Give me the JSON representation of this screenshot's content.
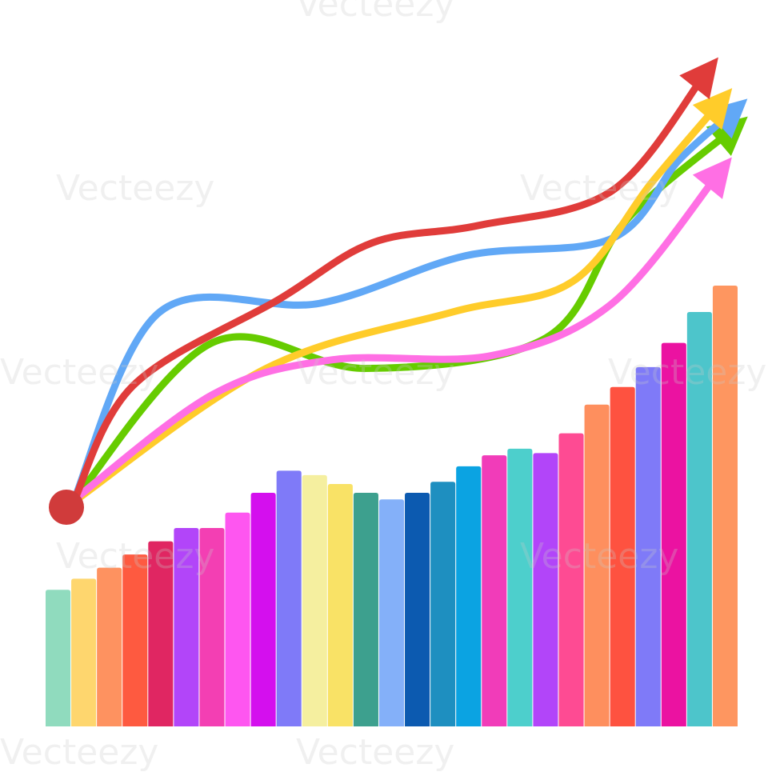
{
  "chart_data": {
    "type": "bar",
    "title": "",
    "xlabel": "",
    "ylabel": "",
    "ylim": [
      0,
      100
    ],
    "grid": false,
    "values": [
      31,
      33.5,
      36,
      39,
      42,
      45,
      45,
      48.5,
      53,
      58,
      57,
      55,
      53,
      51.5,
      53,
      55.5,
      59,
      61.5,
      63,
      62,
      66.5,
      73,
      77,
      81.5,
      87,
      94,
      100
    ],
    "colors": [
      "#90DBBE",
      "#FED66E",
      "#FE9260",
      "#FE5A40",
      "#E02662",
      "#B245F9",
      "#F33FB3",
      "#FE56F0",
      "#D40FEE",
      "#7F7AF8",
      "#F5EF9F",
      "#F9E266",
      "#3DA08E",
      "#84B0F9",
      "#0C5AB0",
      "#1E8FC0",
      "#0BA3E2",
      "#F13CB9",
      "#4DCFCC",
      "#B245F9",
      "#FE4B93",
      "#FE8F5E",
      "#FE5240",
      "#7F7AF8",
      "#EB12A1",
      "#4DC5CB",
      "#FE9660"
    ],
    "trend_arrows": [
      {
        "color": "#E03C3A",
        "points": [
          [
            0,
            20
          ],
          [
            0.1,
            28
          ],
          [
            0.32,
            48
          ],
          [
            0.46,
            61
          ],
          [
            0.62,
            65
          ],
          [
            0.82,
            73
          ],
          [
            0.96,
            100
          ]
        ]
      },
      {
        "color": "#61A8F6",
        "points": [
          [
            0.04,
            20
          ],
          [
            0.14,
            45
          ],
          [
            0.38,
            47
          ],
          [
            0.6,
            58
          ],
          [
            0.82,
            62
          ],
          [
            0.92,
            80
          ],
          [
            1,
            91
          ]
        ]
      },
      {
        "color": "#FFCC2A",
        "points": [
          [
            0.02,
            16
          ],
          [
            0.3,
            32
          ],
          [
            0.58,
            45
          ],
          [
            0.76,
            52
          ],
          [
            0.88,
            75
          ],
          [
            0.98,
            93
          ]
        ]
      },
      {
        "color": "#66CC00",
        "points": [
          [
            0,
            23
          ],
          [
            0.22,
            38
          ],
          [
            0.45,
            32
          ],
          [
            0.72,
            39
          ],
          [
            0.84,
            66
          ],
          [
            1,
            87
          ]
        ]
      },
      {
        "color": "#FF6FE4",
        "points": [
          [
            0,
            21
          ],
          [
            0.22,
            26
          ],
          [
            0.4,
            34
          ],
          [
            0.64,
            35
          ],
          [
            0.82,
            47
          ],
          [
            0.98,
            77
          ]
        ]
      }
    ],
    "origin_color": "#D03B3B"
  },
  "watermark": {
    "text": "Vecteezy"
  }
}
